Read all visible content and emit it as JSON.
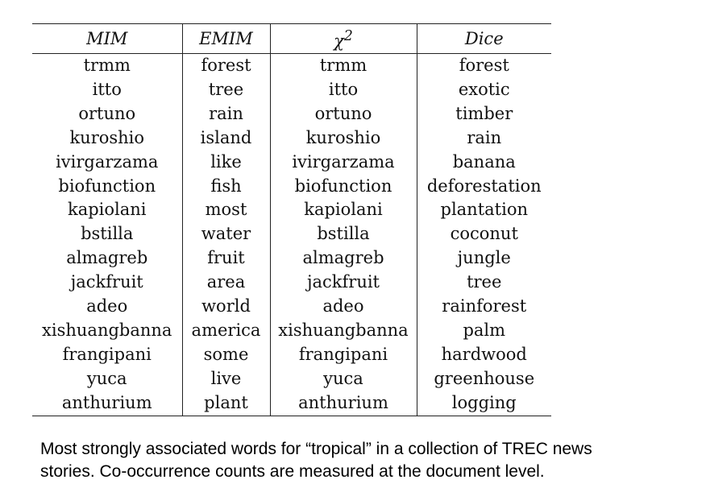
{
  "table": {
    "headers": {
      "mim": "MIM",
      "emim": "EMIM",
      "chi_symbol": "χ",
      "chi_sup": "2",
      "dice": "Dice"
    },
    "rows": [
      [
        "trmm",
        "forest",
        "trmm",
        "forest"
      ],
      [
        "itto",
        "tree",
        "itto",
        "exotic"
      ],
      [
        "ortuno",
        "rain",
        "ortuno",
        "timber"
      ],
      [
        "kuroshio",
        "island",
        "kuroshio",
        "rain"
      ],
      [
        "ivirgarzama",
        "like",
        "ivirgarzama",
        "banana"
      ],
      [
        "biofunction",
        "fish",
        "biofunction",
        "deforestation"
      ],
      [
        "kapiolani",
        "most",
        "kapiolani",
        "plantation"
      ],
      [
        "bstilla",
        "water",
        "bstilla",
        "coconut"
      ],
      [
        "almagreb",
        "fruit",
        "almagreb",
        "jungle"
      ],
      [
        "jackfruit",
        "area",
        "jackfruit",
        "tree"
      ],
      [
        "adeo",
        "world",
        "adeo",
        "rainforest"
      ],
      [
        "xishuangbanna",
        "america",
        "xishuangbanna",
        "palm"
      ],
      [
        "frangipani",
        "some",
        "frangipani",
        "hardwood"
      ],
      [
        "yuca",
        "live",
        "yuca",
        "greenhouse"
      ],
      [
        "anthurium",
        "plant",
        "anthurium",
        "logging"
      ]
    ]
  },
  "caption": {
    "line1": "Most strongly associated words for “tropical” in a collection of TREC news",
    "line2": "stories. Co-occurrence counts are measured at the document level."
  }
}
